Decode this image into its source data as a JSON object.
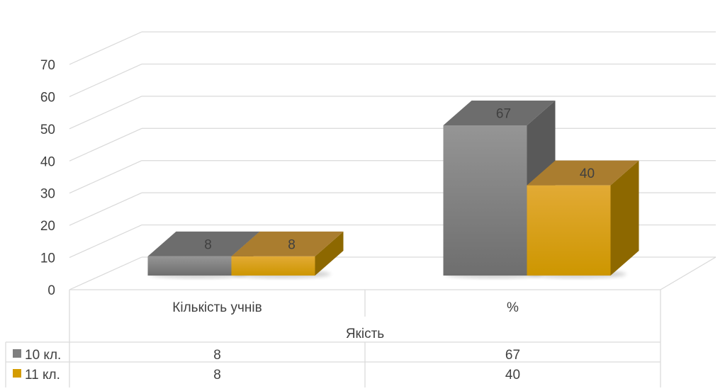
{
  "chart_data": {
    "type": "bar",
    "style": "3d-clustered-column-with-data-table",
    "group_label": "Якість",
    "categories": [
      "Кількість учнів",
      "%"
    ],
    "series": [
      {
        "name": "10 кл.",
        "values": [
          8,
          67
        ],
        "color": "#7f7f7f"
      },
      {
        "name": "11 кл.",
        "values": [
          8,
          40
        ],
        "color": "#d49c00"
      }
    ],
    "ylim": [
      0,
      70
    ],
    "y_ticks": [
      "0",
      "10",
      "20",
      "30",
      "40",
      "50",
      "60",
      "70"
    ],
    "grid": true,
    "data_labels": true,
    "data_table": true
  }
}
